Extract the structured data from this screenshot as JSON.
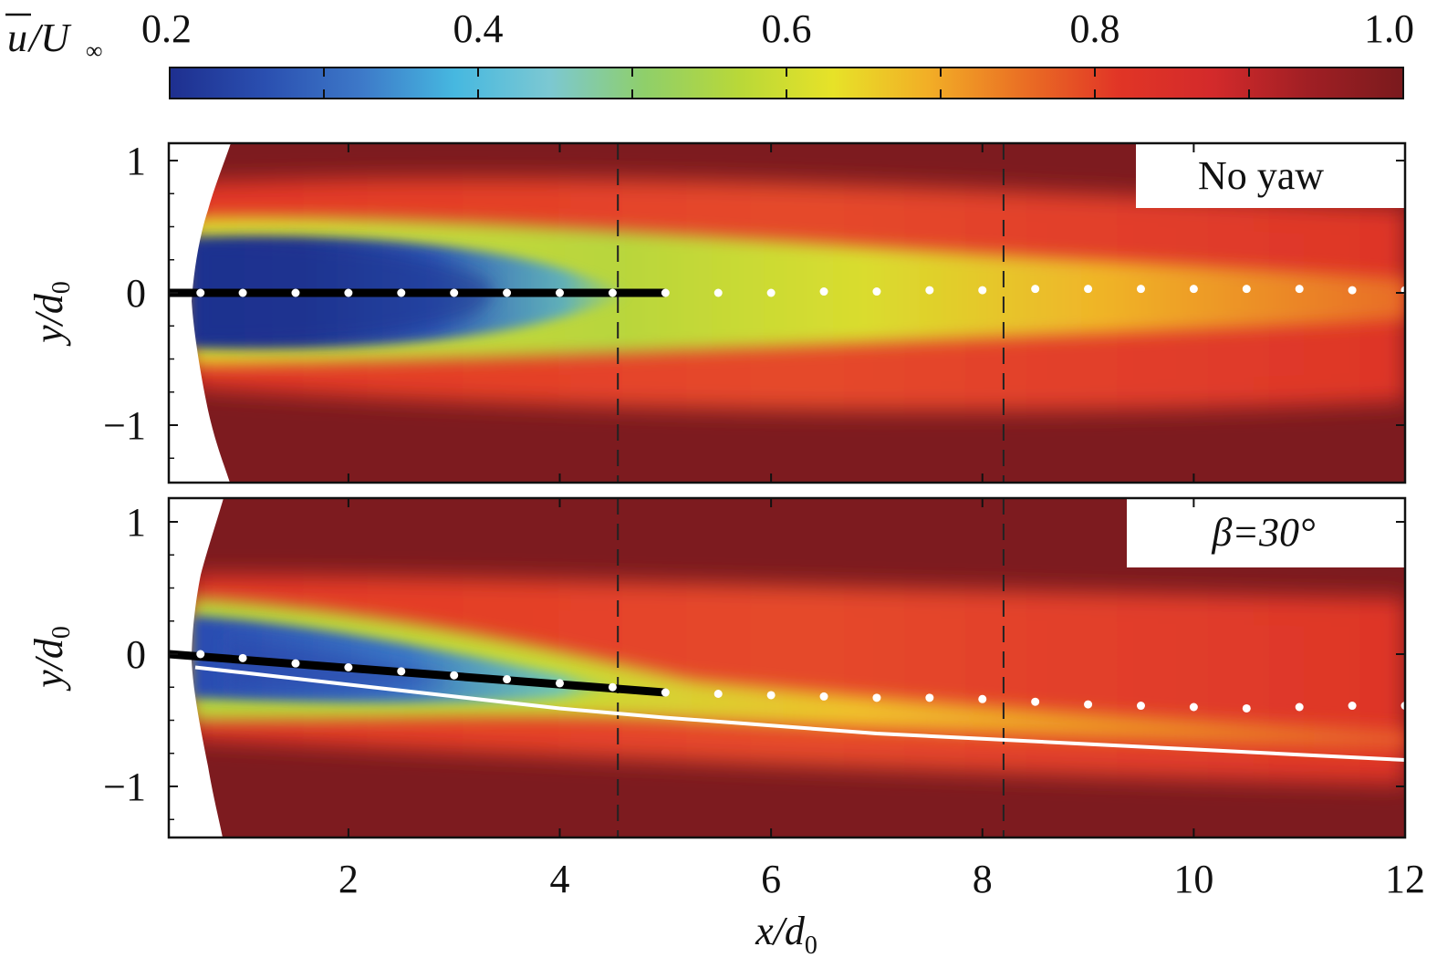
{
  "chart_data": [
    {
      "type": "heatmap",
      "panel": "top",
      "annotation": "No yaw",
      "xlabel": "x/d0",
      "ylabel": "y/d0",
      "xlim": [
        0.3,
        12
      ],
      "ylim": [
        -1.45,
        1.15
      ],
      "x_ticks": [
        2,
        4,
        6,
        8,
        10,
        12
      ],
      "y_ticks": [
        1,
        0,
        -1
      ],
      "vertical_dashed_lines_x": [
        4.55,
        8.2
      ],
      "wake_center_dots": {
        "x": [
          0.6,
          1.0,
          1.5,
          2.0,
          2.5,
          3.0,
          3.5,
          4.0,
          4.5,
          5.0,
          5.5,
          6.0,
          6.5,
          7.0,
          7.5,
          8.0,
          8.5,
          9.0,
          9.5,
          10.0,
          10.5,
          11.0,
          11.5,
          12.0
        ],
        "y": [
          0.0,
          0.0,
          0.0,
          0.0,
          0.0,
          0.0,
          0.0,
          0.0,
          0.0,
          0.0,
          0.0,
          0.0,
          0.01,
          0.01,
          0.02,
          0.02,
          0.03,
          0.03,
          0.03,
          0.03,
          0.03,
          0.03,
          0.02,
          0.02
        ]
      },
      "rotor_line": {
        "x": [
          0.3,
          5.0
        ],
        "y": [
          0.0,
          0.0
        ]
      }
    },
    {
      "type": "heatmap",
      "panel": "bottom",
      "annotation": "β=30°",
      "xlabel": "x/d0",
      "ylabel": "y/d0",
      "xlim": [
        0.3,
        12
      ],
      "ylim": [
        -1.45,
        1.15
      ],
      "x_ticks": [
        2,
        4,
        6,
        8,
        10,
        12
      ],
      "y_ticks": [
        1,
        0,
        -1
      ],
      "vertical_dashed_lines_x": [
        4.55,
        8.2
      ],
      "wake_center_dots": {
        "x": [
          0.6,
          1.0,
          1.5,
          2.0,
          2.5,
          3.0,
          3.5,
          4.0,
          4.5,
          5.0,
          5.5,
          6.0,
          6.5,
          7.0,
          7.5,
          8.0,
          8.5,
          9.0,
          9.5,
          10.0,
          10.5,
          11.0,
          11.5,
          12.0
        ],
        "y": [
          0.0,
          -0.03,
          -0.07,
          -0.1,
          -0.13,
          -0.16,
          -0.19,
          -0.22,
          -0.25,
          -0.29,
          -0.3,
          -0.31,
          -0.32,
          -0.33,
          -0.33,
          -0.34,
          -0.36,
          -0.38,
          -0.39,
          -0.4,
          -0.41,
          -0.4,
          -0.39,
          -0.39
        ]
      },
      "rotor_line": {
        "x": [
          0.3,
          5.0
        ],
        "y": [
          0.0,
          -0.29
        ]
      },
      "trajectory_line": {
        "x": [
          0.55,
          1.0,
          2.0,
          3.0,
          4.0,
          5.0,
          6.0,
          7.0,
          8.0,
          9.0,
          10.0,
          11.0,
          12.0
        ],
        "y": [
          -0.1,
          -0.14,
          -0.23,
          -0.32,
          -0.41,
          -0.48,
          -0.54,
          -0.6,
          -0.64,
          -0.68,
          -0.72,
          -0.76,
          -0.8
        ]
      }
    }
  ],
  "colorbar": {
    "label": "u/U∞",
    "range": [
      0.2,
      1.0
    ],
    "tick_values": [
      0.2,
      0.4,
      0.6,
      0.8,
      1.0
    ],
    "tick_labels": [
      "0.2",
      "0.4",
      "0.6",
      "0.8",
      "1.0"
    ],
    "stops": [
      "#1e2f8f",
      "#2a4fb0",
      "#3d78c8",
      "#46b8e0",
      "#7cc8d2",
      "#8fcf6a",
      "#b9d838",
      "#e7e228",
      "#f2ae26",
      "#ea6f24",
      "#e13526",
      "#d32a2b",
      "#a01f24",
      "#7a1a1d"
    ]
  },
  "labels": {
    "x_axis": "x/d",
    "y_axis": "y/d",
    "subscript": "0",
    "cbar_u": "u",
    "cbar_slash": "/U",
    "cbar_inf": "∞",
    "panel_top": "No yaw",
    "panel_bottom": "β=30°"
  },
  "colors": {
    "freestream": "#7d1b1f",
    "dot": "#ffffff",
    "line": "#000000",
    "trajectory": "#ffffff"
  }
}
